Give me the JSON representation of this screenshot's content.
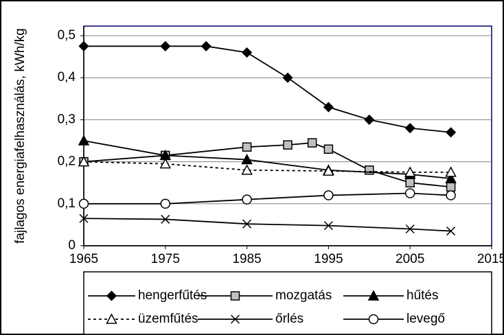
{
  "chart_data": {
    "type": "line",
    "ylabel": "fajlagos energiafelhasználás, kWh/kg",
    "xlim": [
      1965,
      2015
    ],
    "xticks": [
      1965,
      1975,
      1985,
      1995,
      2005,
      2015
    ],
    "ylim": [
      0,
      0.5
    ],
    "yticks": [
      0,
      {
        "value": 0.1,
        "label": "0,1"
      },
      {
        "value": 0.2,
        "label": "0,2"
      },
      {
        "value": 0.3,
        "label": "0,3"
      },
      {
        "value": 0.4,
        "label": "0,4"
      },
      {
        "value": 0.5,
        "label": "0,5"
      }
    ],
    "grid": true,
    "series": [
      {
        "name": "hengerfűtés",
        "color": "#000000",
        "marker": "diamond",
        "x": [
          1965,
          1975,
          1980,
          1985,
          1990,
          1995,
          2000,
          2005,
          2010
        ],
        "values": [
          0.475,
          0.475,
          0.475,
          0.46,
          0.4,
          0.33,
          0.3,
          0.28,
          0.27
        ]
      },
      {
        "name": "mozgatás",
        "color": "#000000",
        "marker": "square",
        "x": [
          1965,
          1975,
          1985,
          1990,
          1993,
          1995,
          2000,
          2005,
          2010
        ],
        "values": [
          0.2,
          0.215,
          0.235,
          0.24,
          0.245,
          0.23,
          0.18,
          0.15,
          0.14
        ]
      },
      {
        "name": "hűtés",
        "color": "#000000",
        "marker": "triangle",
        "x": [
          1965,
          1975,
          1985,
          1995,
          2005,
          2010
        ],
        "values": [
          0.25,
          0.215,
          0.205,
          0.18,
          0.17,
          0.16
        ]
      },
      {
        "name": "üzemfűtés",
        "color": "#000000",
        "marker": "open-triangle",
        "line_style": "dashed",
        "x": [
          1965,
          1975,
          1985,
          1995,
          2005,
          2010
        ],
        "values": [
          0.2,
          0.195,
          0.18,
          0.178,
          0.175,
          0.175
        ]
      },
      {
        "name": "őrlés",
        "color": "#000000",
        "marker": "x",
        "x": [
          1965,
          1975,
          1985,
          1995,
          2005,
          2010
        ],
        "values": [
          0.065,
          0.063,
          0.052,
          0.048,
          0.04,
          0.035
        ]
      },
      {
        "name": "levegő",
        "color": "#000000",
        "marker": "circle",
        "x": [
          1965,
          1975,
          1985,
          1995,
          2005,
          2010
        ],
        "values": [
          0.1,
          0.1,
          0.11,
          0.12,
          0.125,
          0.12
        ]
      }
    ]
  }
}
